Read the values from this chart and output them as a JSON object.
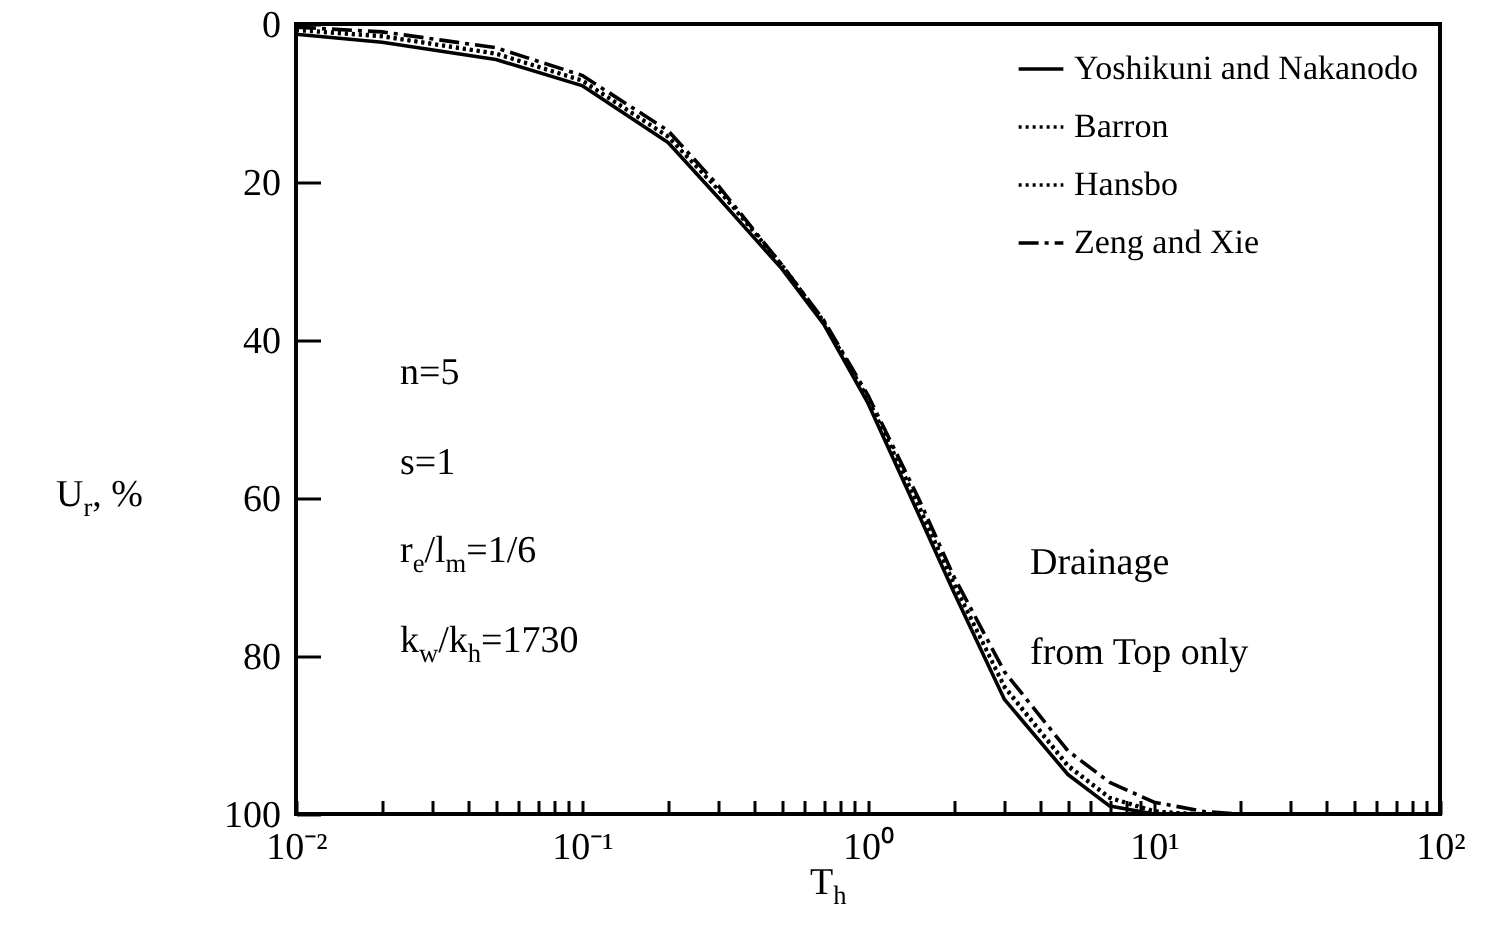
{
  "chart_data": {
    "type": "line",
    "xlabel": "T$_{h}$",
    "ylabel": "U$_{r}$, %",
    "log": "x",
    "xlim": [
      0.01,
      100
    ],
    "ylim": [
      100,
      0
    ],
    "xticks": [
      {
        "value": 0.01,
        "label": "10⁻²"
      },
      {
        "value": 0.02,
        "label": null
      },
      {
        "value": 0.03,
        "label": null
      },
      {
        "value": 0.04,
        "label": null
      },
      {
        "value": 0.05,
        "label": null
      },
      {
        "value": 0.06,
        "label": null
      },
      {
        "value": 0.07,
        "label": null
      },
      {
        "value": 0.08,
        "label": null
      },
      {
        "value": 0.09,
        "label": null
      },
      {
        "value": 0.1,
        "label": "10⁻¹"
      },
      {
        "value": 0.2,
        "label": null
      },
      {
        "value": 0.3,
        "label": null
      },
      {
        "value": 0.4,
        "label": null
      },
      {
        "value": 0.5,
        "label": null
      },
      {
        "value": 0.6,
        "label": null
      },
      {
        "value": 0.7,
        "label": null
      },
      {
        "value": 0.8,
        "label": null
      },
      {
        "value": 0.9,
        "label": null
      },
      {
        "value": 1,
        "label": "10⁰"
      },
      {
        "value": 2,
        "label": null
      },
      {
        "value": 3,
        "label": null
      },
      {
        "value": 4,
        "label": null
      },
      {
        "value": 5,
        "label": null
      },
      {
        "value": 6,
        "label": null
      },
      {
        "value": 7,
        "label": null
      },
      {
        "value": 8,
        "label": null
      },
      {
        "value": 9,
        "label": null
      },
      {
        "value": 10,
        "label": "10¹"
      },
      {
        "value": 20,
        "label": null
      },
      {
        "value": 30,
        "label": null
      },
      {
        "value": 40,
        "label": null
      },
      {
        "value": 50,
        "label": null
      },
      {
        "value": 60,
        "label": null
      },
      {
        "value": 70,
        "label": null
      },
      {
        "value": 80,
        "label": null
      },
      {
        "value": 90,
        "label": null
      },
      {
        "value": 100,
        "label": "10²"
      }
    ],
    "yticks": [
      0,
      20,
      40,
      60,
      80,
      100
    ],
    "grid": false,
    "legend": "top right",
    "annotations": [
      "n=5",
      "s=1",
      "r$_{e}$/l$_{m}$=1/6",
      "k$_{w}$/k$_{h}$=1730",
      "Drainage",
      "from Top only"
    ],
    "series": [
      {
        "name": "Yoshikuni and Nakanodo",
        "color": "#000000",
        "line_style": "solid",
        "x": [
          0.01,
          0.02,
          0.05,
          0.1,
          0.2,
          0.3,
          0.5,
          0.7,
          1,
          1.5,
          2,
          3,
          5,
          7,
          10
        ],
        "values": [
          1.3,
          2.3,
          4.5,
          7.8,
          15,
          22,
          31,
          38,
          48,
          62,
          72,
          85.5,
          95,
          99,
          100
        ]
      },
      {
        "name": "Barron",
        "color": "#000000",
        "line_style": "dotted",
        "x": [
          0.01,
          0.02,
          0.05,
          0.1,
          0.2,
          0.3,
          0.5,
          0.7,
          1,
          1.5,
          2,
          3,
          5,
          7,
          10,
          15
        ],
        "values": [
          0.8,
          1.6,
          3.8,
          7.2,
          14.3,
          21,
          30.5,
          37.7,
          47.5,
          61,
          71,
          84,
          94,
          98,
          99.7,
          100
        ]
      },
      {
        "name": "Hansbo",
        "color": "#000000",
        "line_style": "dotted",
        "x": [
          0.01,
          0.02,
          0.05,
          0.1,
          0.2,
          0.3,
          0.5,
          0.7,
          1,
          1.5,
          2,
          3,
          5,
          7,
          10,
          13
        ],
        "values": [
          0.7,
          1.5,
          3.7,
          7.1,
          14.2,
          21,
          30.5,
          37.6,
          47.4,
          60.8,
          70.8,
          83.8,
          93.8,
          97.9,
          99.6,
          100
        ]
      },
      {
        "name": "Zeng and Xie",
        "color": "#000000",
        "line_style": "dashdot",
        "x": [
          0.01,
          0.02,
          0.05,
          0.1,
          0.2,
          0.3,
          0.5,
          0.7,
          1,
          1.5,
          2,
          3,
          5,
          7,
          10,
          15,
          20
        ],
        "values": [
          0.4,
          1,
          3,
          6.5,
          13.5,
          20.5,
          30.5,
          37.5,
          47,
          60,
          70,
          82,
          92,
          96,
          98.5,
          99.7,
          100
        ]
      }
    ]
  }
}
